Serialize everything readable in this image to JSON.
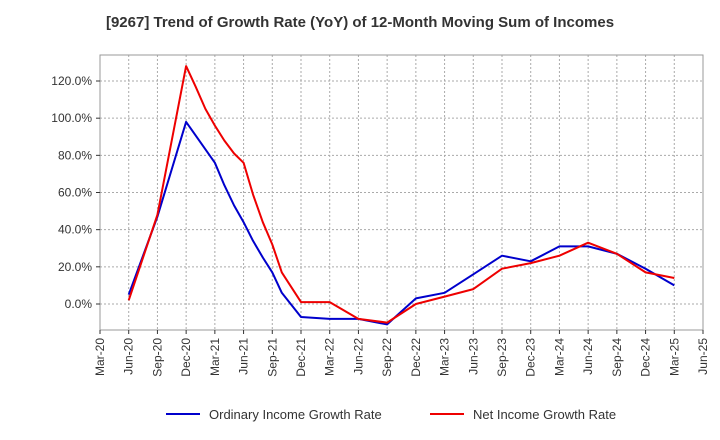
{
  "chart_data": {
    "type": "line",
    "title": "[9267]  Trend of Growth Rate (YoY) of 12-Month Moving Sum of Incomes",
    "xlabel": "",
    "ylabel": "",
    "x_ticks": [
      "Mar-20",
      "Jun-20",
      "Sep-20",
      "Dec-20",
      "Mar-21",
      "Jun-21",
      "Sep-21",
      "Dec-21",
      "Mar-22",
      "Jun-22",
      "Sep-22",
      "Dec-22",
      "Mar-23",
      "Jun-23",
      "Sep-23",
      "Dec-23",
      "Mar-24",
      "Jun-24",
      "Sep-24",
      "Dec-24",
      "Mar-25",
      "Jun-25"
    ],
    "y_ticks": [
      "0.0%",
      "20.0%",
      "40.0%",
      "60.0%",
      "80.0%",
      "100.0%",
      "120.0%"
    ],
    "ylim": [
      -14,
      134
    ],
    "grid": true,
    "legend_position": "bottom",
    "series": [
      {
        "name": "Ordinary Income Growth Rate",
        "color": "#0000cc",
        "points": [
          [
            1,
            5
          ],
          [
            2,
            47
          ],
          [
            3,
            98
          ],
          [
            4,
            76
          ],
          [
            4.33,
            64
          ],
          [
            4.67,
            53
          ],
          [
            5,
            44
          ],
          [
            5.33,
            34
          ],
          [
            5.67,
            25
          ],
          [
            6,
            17
          ],
          [
            6.33,
            6
          ],
          [
            7,
            -7
          ],
          [
            8,
            -8
          ],
          [
            9,
            -8
          ],
          [
            10,
            -11
          ],
          [
            11,
            3
          ],
          [
            12,
            6
          ],
          [
            13,
            16
          ],
          [
            14,
            26
          ],
          [
            15,
            23
          ],
          [
            16,
            31
          ],
          [
            17,
            31
          ],
          [
            18,
            27
          ],
          [
            19,
            19
          ],
          [
            20,
            10
          ]
        ]
      },
      {
        "name": "Net Income Growth Rate",
        "color": "#ee0000",
        "points": [
          [
            1,
            2
          ],
          [
            2,
            48
          ],
          [
            3,
            128
          ],
          [
            3.33,
            117
          ],
          [
            3.67,
            105
          ],
          [
            4,
            96
          ],
          [
            4.33,
            88
          ],
          [
            4.67,
            81
          ],
          [
            5,
            76
          ],
          [
            5.33,
            59
          ],
          [
            5.67,
            44
          ],
          [
            6,
            32
          ],
          [
            6.33,
            17
          ],
          [
            7,
            1
          ],
          [
            8,
            1
          ],
          [
            9,
            -8
          ],
          [
            10,
            -10
          ],
          [
            11,
            0
          ],
          [
            12,
            4
          ],
          [
            13,
            8
          ],
          [
            14,
            19
          ],
          [
            15,
            22
          ],
          [
            16,
            26
          ],
          [
            17,
            33
          ],
          [
            18,
            27
          ],
          [
            19,
            17
          ],
          [
            20,
            14
          ]
        ]
      }
    ]
  }
}
